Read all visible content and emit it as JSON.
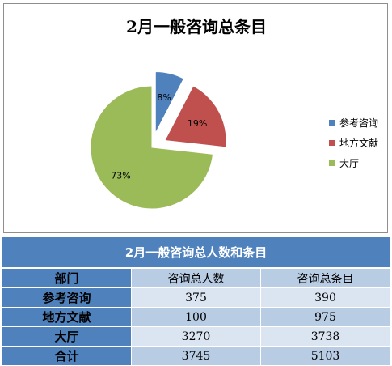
{
  "chart_data": {
    "type": "pie",
    "title": "2月一般咨询总条目",
    "categories": [
      "参考咨询",
      "地方文献",
      "大厅"
    ],
    "values": [
      390,
      975,
      3738
    ],
    "percent_labels": [
      "8%",
      "19%",
      "73%"
    ],
    "colors": [
      "#4f81bd",
      "#c0504d",
      "#9bbb59"
    ],
    "exploded": true,
    "legend_position": "right"
  },
  "table": {
    "title": "2月一般咨询总人数和条目",
    "headers": [
      "部门",
      "咨询总人数",
      "咨询总条目"
    ],
    "rows": [
      {
        "label": "参考咨询",
        "people": "375",
        "items": "390"
      },
      {
        "label": "地方文献",
        "people": "100",
        "items": "975"
      },
      {
        "label": "大厅",
        "people": "3270",
        "items": "3738"
      },
      {
        "label": "合计",
        "people": "3745",
        "items": "5103"
      }
    ]
  }
}
